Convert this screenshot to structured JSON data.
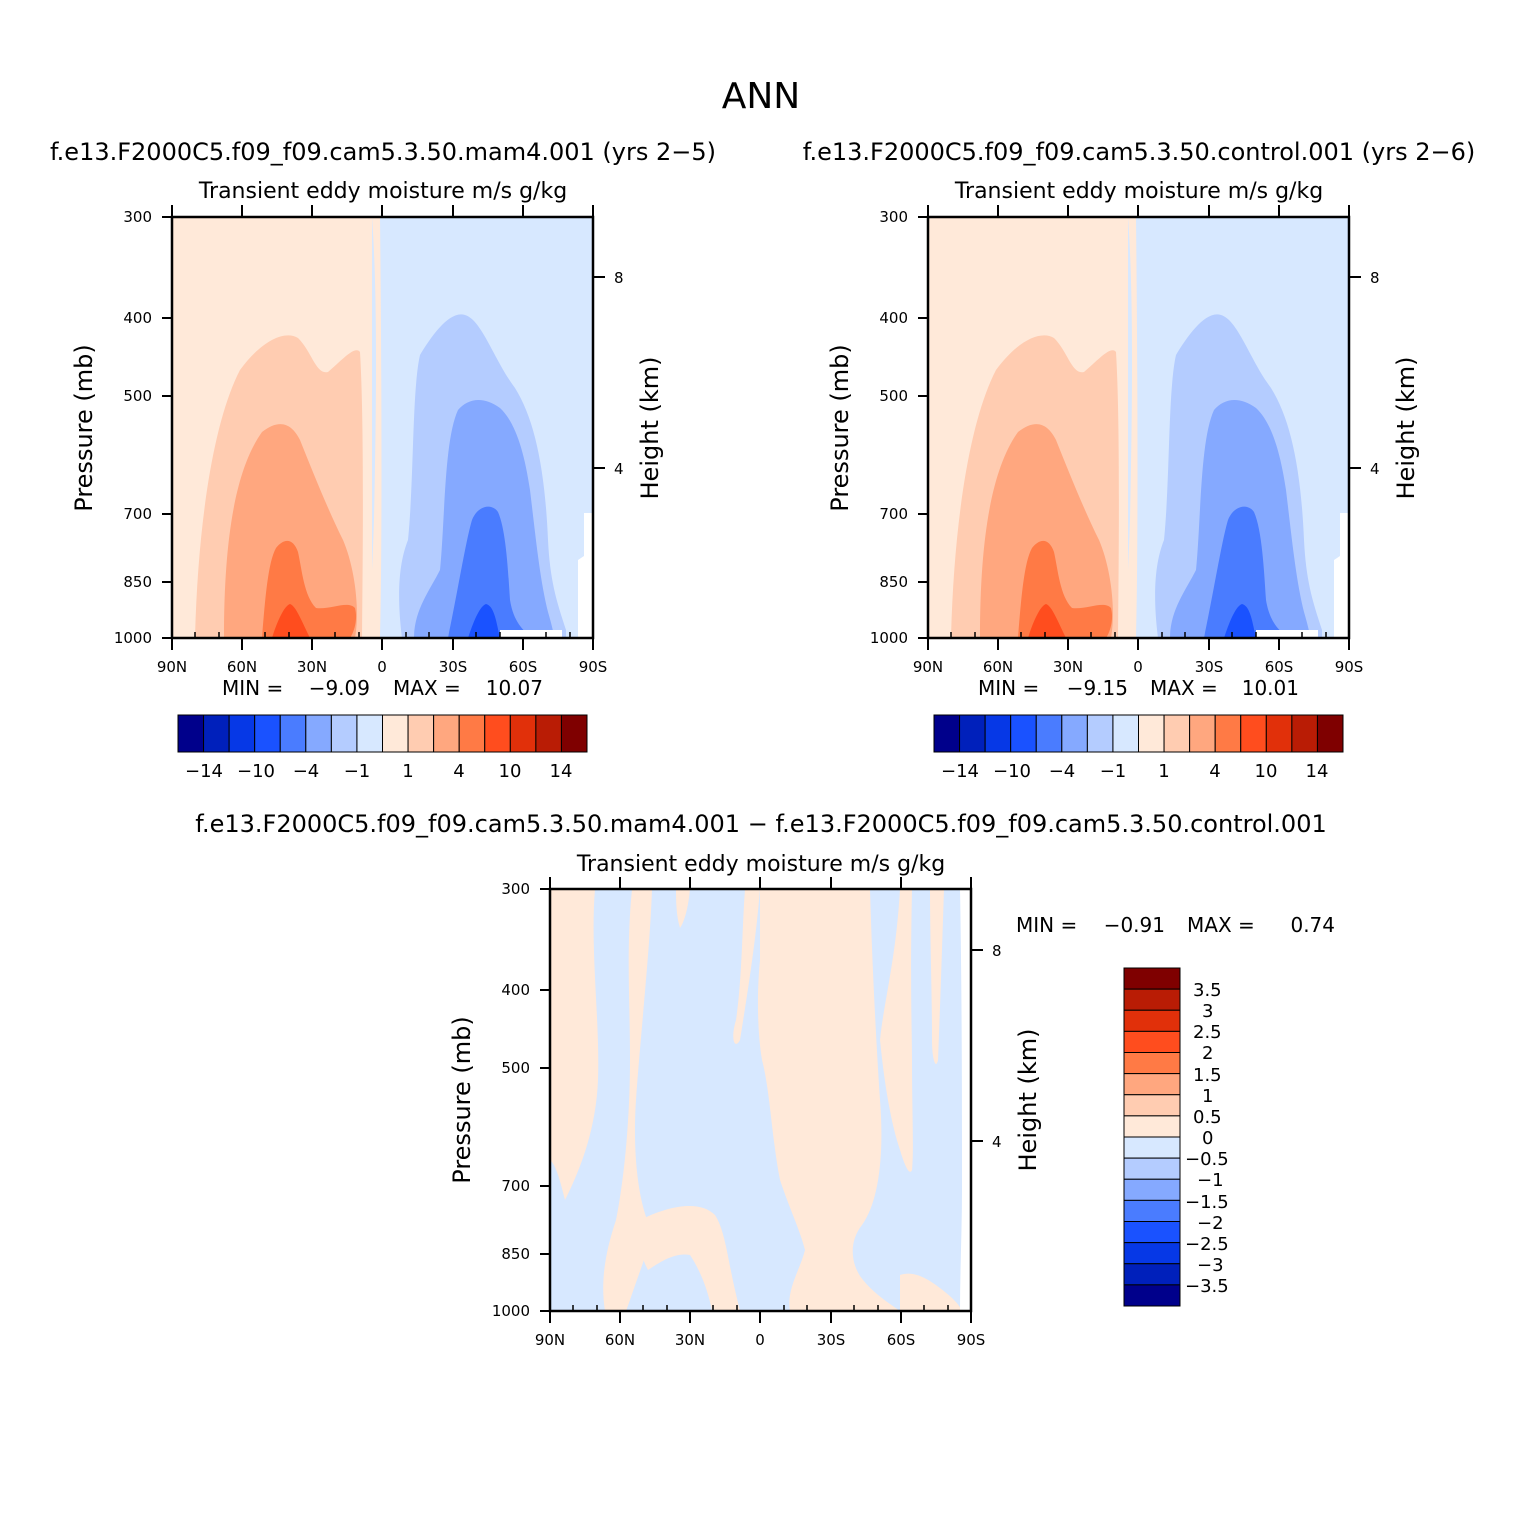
{
  "figure": {
    "title": "ANN",
    "diff_case_title": "f.e13.F2000C5.f09_f09.cam5.3.50.mam4.001 − f.e13.F2000C5.f09_f09.cam5.3.50.control.001"
  },
  "chart_data": [
    {
      "type": "contour",
      "case_title": "f.e13.F2000C5.f09_f09.cam5.3.50.mam4.001 (yrs 2−5)",
      "title": "Transient eddy moisture m/s g/kg",
      "ylabel": "Pressure (mb)",
      "ylabel_right": "Height (km)",
      "x_ticks": [
        "90N",
        "60N",
        "30N",
        "0",
        "30S",
        "60S",
        "90S"
      ],
      "y_ticks": [
        "300",
        "400",
        "500",
        "700",
        "850",
        "1000"
      ],
      "y_right_ticks": [
        "8",
        "4"
      ],
      "xlim": [
        "90N",
        "90S"
      ],
      "ylim": [
        1000,
        300
      ],
      "min_label": "MIN =",
      "min_value": "−9.09",
      "max_label": "MAX =",
      "max_value": "10.07",
      "colorbar_labels": [
        "−14",
        "−10",
        "−4",
        "−1",
        "1",
        "4",
        "10",
        "14"
      ]
    },
    {
      "type": "contour",
      "case_title": "f.e13.F2000C5.f09_f09.cam5.3.50.control.001 (yrs 2−6)",
      "title": "Transient eddy moisture m/s g/kg",
      "ylabel": "Pressure (mb)",
      "ylabel_right": "Height (km)",
      "x_ticks": [
        "90N",
        "60N",
        "30N",
        "0",
        "30S",
        "60S",
        "90S"
      ],
      "y_ticks": [
        "300",
        "400",
        "500",
        "700",
        "850",
        "1000"
      ],
      "y_right_ticks": [
        "8",
        "4"
      ],
      "xlim": [
        "90N",
        "90S"
      ],
      "ylim": [
        1000,
        300
      ],
      "min_label": "MIN =",
      "min_value": "−9.15",
      "max_label": "MAX =",
      "max_value": "10.01",
      "colorbar_labels": [
        "−14",
        "−10",
        "−4",
        "−1",
        "1",
        "4",
        "10",
        "14"
      ]
    },
    {
      "type": "contour",
      "title": "Transient eddy moisture m/s g/kg",
      "ylabel": "Pressure (mb)",
      "ylabel_right": "Height (km)",
      "x_ticks": [
        "90N",
        "60N",
        "30N",
        "0",
        "30S",
        "60S",
        "90S"
      ],
      "y_ticks": [
        "300",
        "400",
        "500",
        "700",
        "850",
        "1000"
      ],
      "y_right_ticks": [
        "8",
        "4"
      ],
      "xlim": [
        "90N",
        "90S"
      ],
      "ylim": [
        1000,
        300
      ],
      "min_label": "MIN =",
      "min_value": "−0.91",
      "max_label": "MAX =",
      "max_value": "0.74",
      "colorbar_labels": [
        "3.5",
        "3",
        "2.5",
        "2",
        "1.5",
        "1",
        "0.5",
        "0",
        "−0.5",
        "−1",
        "−1.5",
        "−2",
        "−2.5",
        "−3",
        "−3.5"
      ]
    }
  ],
  "colors": {
    "main_scale": [
      "#00008b",
      "#0020bb",
      "#0638e6",
      "#1a52ff",
      "#4a7cff",
      "#85a9ff",
      "#b4ccff",
      "#d7e8ff",
      "#ffe9d9",
      "#ffccb1",
      "#ffa77f",
      "#ff7a45",
      "#ff4d1e",
      "#e1300a",
      "#b91c05",
      "#7f0000"
    ],
    "diff_scale": [
      "#7f0000",
      "#b91c05",
      "#e1300a",
      "#ff4d1e",
      "#ff7a45",
      "#ffa77f",
      "#ffccb1",
      "#ffe9d9",
      "#d7e8ff",
      "#b4ccff",
      "#85a9ff",
      "#4a7cff",
      "#1a52ff",
      "#0638e6",
      "#0020bb",
      "#00008b"
    ]
  }
}
